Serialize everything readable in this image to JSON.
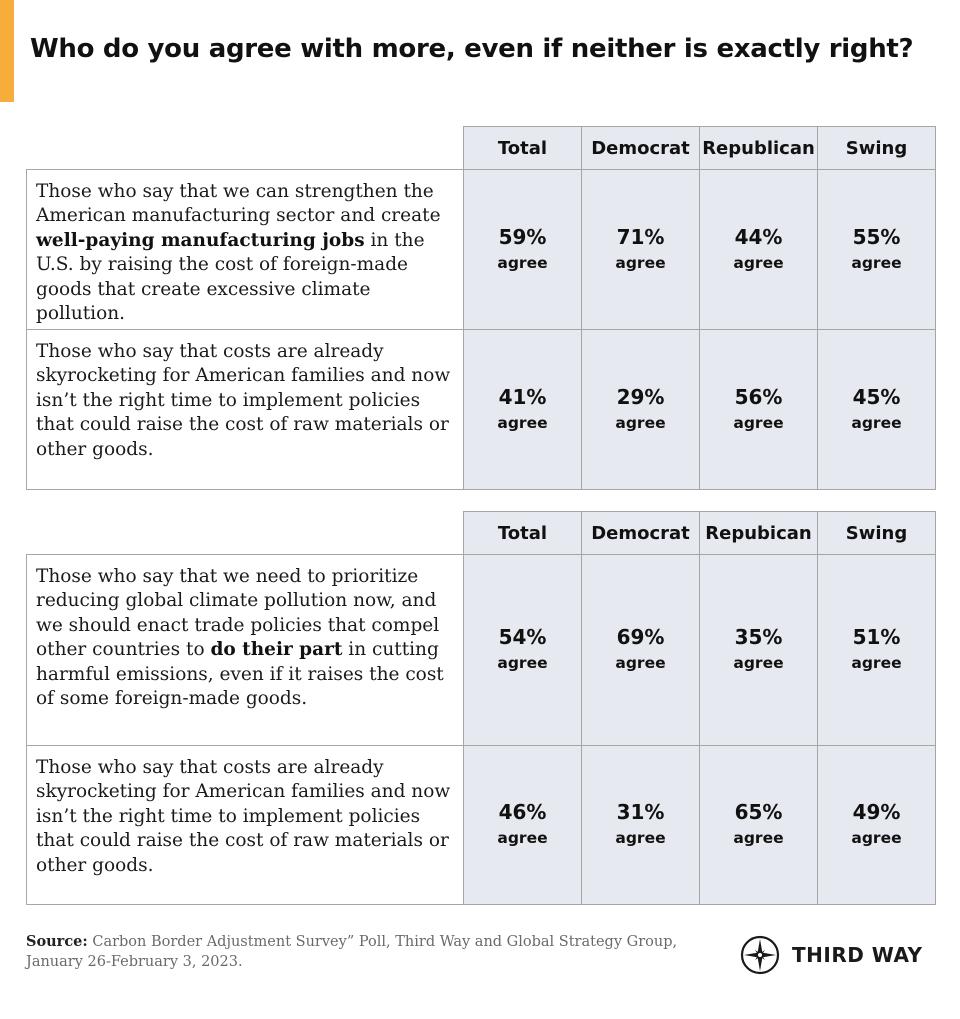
{
  "title": "Who do you agree with more, even if neither is exactly right?",
  "colors": {
    "accent": "#f6ad3b",
    "cell_fill": "#e6e9f0",
    "border": "#a6a6a6"
  },
  "table1": {
    "headers": [
      "Total",
      "Democrat",
      "Republican",
      "Swing"
    ],
    "rows": [
      {
        "statement_pre": "Those who say that we can strengthen the American manufacturing sector and create ",
        "statement_bold": "well-paying manufacturing jobs",
        "statement_post": " in the U.S. by raising the cost of foreign-made goods that create excessive climate pollution.",
        "values": [
          "59%",
          "71%",
          "44%",
          "55%"
        ],
        "unit": "agree"
      },
      {
        "statement_pre": "Those who say that costs are already skyrocketing for American families and now isn’t the right time to implement policies that could raise the cost of raw materials or other goods.",
        "statement_bold": "",
        "statement_post": "",
        "values": [
          "41%",
          "29%",
          "56%",
          "45%"
        ],
        "unit": "agree"
      }
    ]
  },
  "table2": {
    "headers": [
      "Total",
      "Democrat",
      "Repubican",
      "Swing"
    ],
    "rows": [
      {
        "statement_pre": "Those who say that we need to prioritize reducing global climate pollution now, and we should enact trade policies that compel other countries to ",
        "statement_bold": "do their part",
        "statement_post": " in cutting harmful emissions, even if it raises the cost of some foreign-made goods.",
        "values": [
          "54%",
          "69%",
          "35%",
          "51%"
        ],
        "unit": "agree"
      },
      {
        "statement_pre": "Those who say that costs are already skyrocketing for American families and now isn’t the right time to implement policies that could raise the cost of raw materials or other goods.",
        "statement_bold": "",
        "statement_post": "",
        "values": [
          "46%",
          "31%",
          "65%",
          "49%"
        ],
        "unit": "agree"
      }
    ]
  },
  "source": {
    "label": "Source:",
    "text": " Carbon Border Adjustment Survey” Poll, Third Way and Global Strategy Group, January 26-February 3, 2023."
  },
  "logo": {
    "icon": "compass-star-icon",
    "text": "THIRD WAY"
  }
}
